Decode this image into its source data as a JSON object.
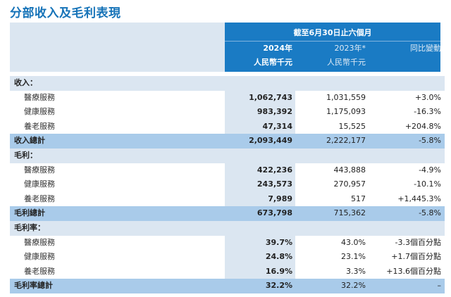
{
  "title": "分部收入及毛利表現",
  "header": {
    "period": "截至6月30日止六個月",
    "col_2024_year": "2024年",
    "col_2024_unit": "人民幣千元",
    "col_2023_year": "2023年*",
    "col_2023_unit": "人民幣千元",
    "col_yoy": "同比變動"
  },
  "rows": [
    {
      "type": "section",
      "label": "收入：",
      "v24": "",
      "v23": "",
      "yoy": ""
    },
    {
      "type": "item",
      "label": "醫療服務",
      "v24": "1,062,743",
      "v23": "1,031,559",
      "yoy": "+3.0%"
    },
    {
      "type": "item",
      "label": "健康服務",
      "v24": "983,392",
      "v23": "1,175,093",
      "yoy": "-16.3%"
    },
    {
      "type": "item",
      "label": "養老服務",
      "v24": "47,314",
      "v23": "15,525",
      "yoy": "+204.8%"
    },
    {
      "type": "total",
      "label": "收入總計",
      "v24": "2,093,449",
      "v23": "2,222,177",
      "yoy": "-5.8%"
    },
    {
      "type": "section",
      "label": "毛利：",
      "v24": "",
      "v23": "",
      "yoy": ""
    },
    {
      "type": "item",
      "label": "醫療服務",
      "v24": "422,236",
      "v23": "443,888",
      "yoy": "-4.9%"
    },
    {
      "type": "item",
      "label": "健康服務",
      "v24": "243,573",
      "v23": "270,957",
      "yoy": "-10.1%"
    },
    {
      "type": "item",
      "label": "養老服務",
      "v24": "7,989",
      "v23": "517",
      "yoy": "+1,445.3%"
    },
    {
      "type": "total",
      "label": "毛利總計",
      "v24": "673,798",
      "v23": "715,362",
      "yoy": "-5.8%"
    },
    {
      "type": "section",
      "label": "毛利率：",
      "v24": "",
      "v23": "",
      "yoy": ""
    },
    {
      "type": "item",
      "label": "醫療服務",
      "v24": "39.7%",
      "v23": "43.0%",
      "yoy": "-3.3個百分點"
    },
    {
      "type": "item",
      "label": "健康服務",
      "v24": "24.8%",
      "v23": "23.1%",
      "yoy": "+1.7個百分點"
    },
    {
      "type": "item",
      "label": "養老服務",
      "v24": "16.9%",
      "v23": "3.3%",
      "yoy": "+13.6個百分點"
    },
    {
      "type": "total",
      "label": "毛利率總計",
      "v24": "32.2%",
      "v23": "32.2%",
      "yoy": "–"
    }
  ]
}
